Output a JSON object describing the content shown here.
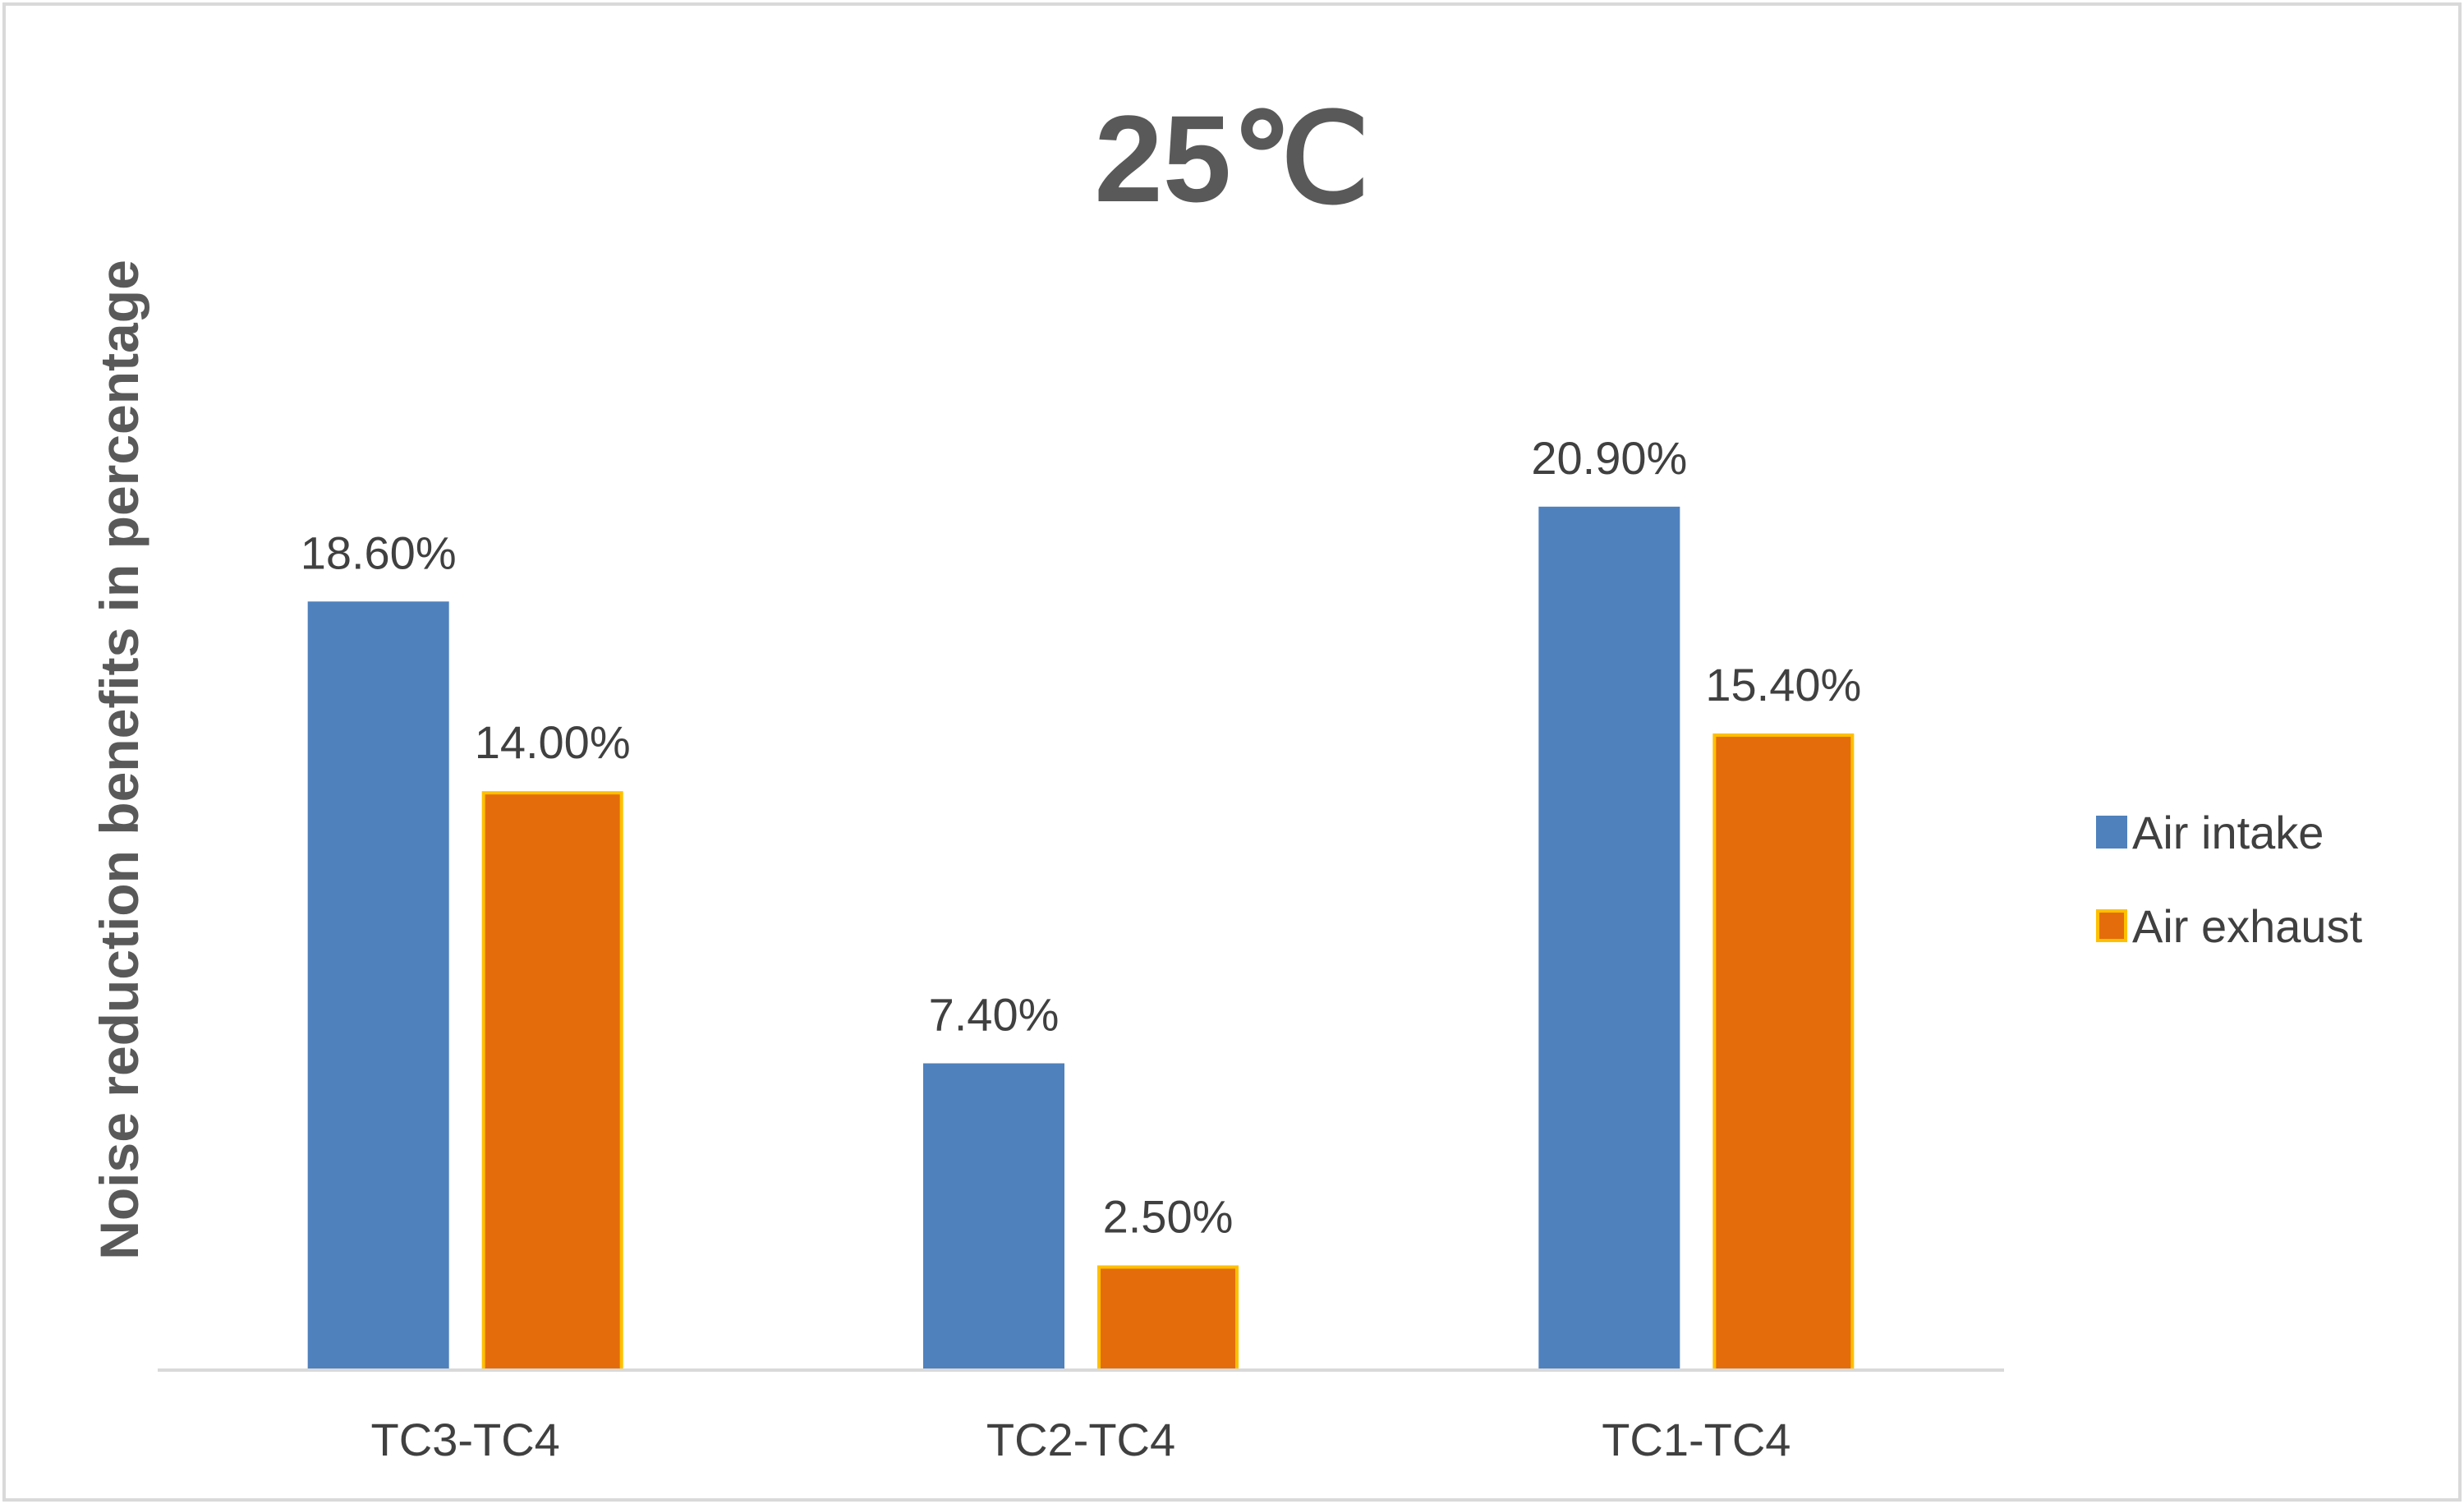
{
  "chart_data": {
    "type": "bar",
    "title": "25℃",
    "xlabel": "",
    "ylabel": "Noise reduction benefits in percentage",
    "categories": [
      "TC3-TC4",
      "TC2-TC4",
      "TC1-TC4"
    ],
    "series": [
      {
        "name": "Air intake",
        "values": [
          18.6,
          7.4,
          20.9
        ],
        "labels": [
          "18.60%",
          "7.40%",
          "20.90%"
        ],
        "color": "#4F81BD",
        "border": "#4F81BD"
      },
      {
        "name": "Air exhaust",
        "values": [
          14.0,
          2.5,
          15.4
        ],
        "labels": [
          "14.00%",
          "2.50%",
          "15.40%"
        ],
        "color": "#E46C0A",
        "border": "#FFC000"
      }
    ],
    "ylim": [
      0,
      25
    ],
    "grid": false,
    "legend_position": "right",
    "axis_color": "#D9D9D9",
    "border_color": "#D9D9D9"
  }
}
